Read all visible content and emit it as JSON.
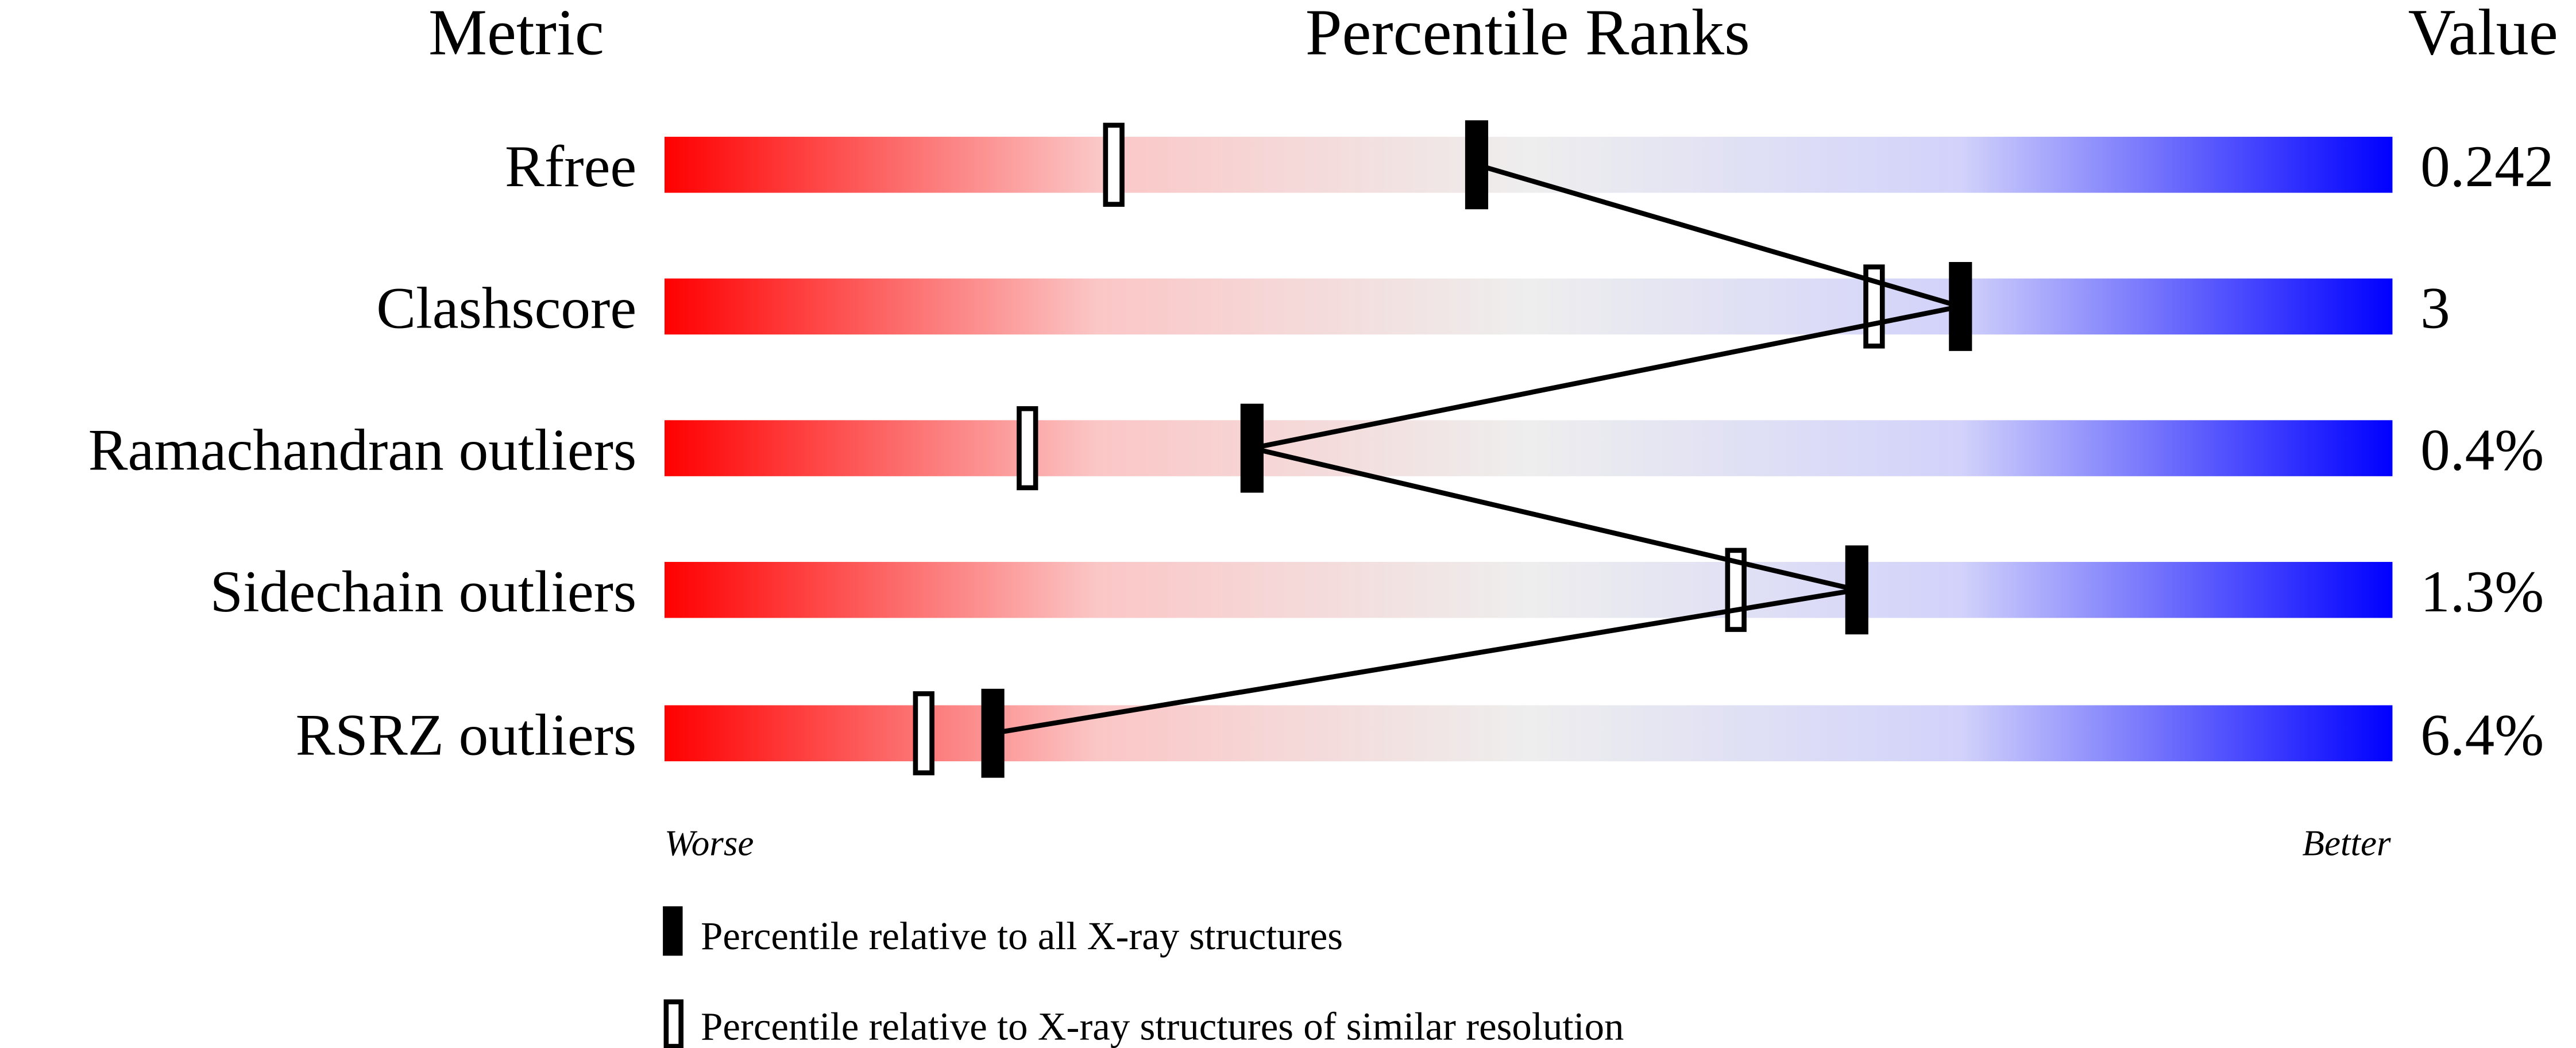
{
  "chart_data": {
    "type": "percentile-ranks",
    "headers": {
      "metric": "Metric",
      "ranks": "Percentile Ranks",
      "value": "Value"
    },
    "metrics": [
      {
        "name": "Rfree",
        "value": "0.242",
        "percentile_all": 47,
        "percentile_similar": 26
      },
      {
        "name": "Clashscore",
        "value": "3",
        "percentile_all": 75,
        "percentile_similar": 70
      },
      {
        "name": "Ramachandran outliers",
        "value": "0.4%",
        "percentile_all": 34,
        "percentile_similar": 21
      },
      {
        "name": "Sidechain outliers",
        "value": "1.3%",
        "percentile_all": 69,
        "percentile_similar": 62
      },
      {
        "name": "RSRZ outliers",
        "value": "6.4%",
        "percentile_all": 19,
        "percentile_similar": 15
      }
    ],
    "axis": {
      "left_label": "Worse",
      "right_label": "Better",
      "range": [
        0,
        100
      ]
    },
    "legend": [
      {
        "marker": "filled",
        "label": "Percentile relative to all X-ray structures"
      },
      {
        "marker": "open",
        "label": "Percentile relative to X-ray structures of similar resolution"
      }
    ],
    "colors": {
      "worse": "#ff0000",
      "middle": "#eeeeee",
      "better": "#0000ff",
      "marker": "#000000"
    }
  }
}
